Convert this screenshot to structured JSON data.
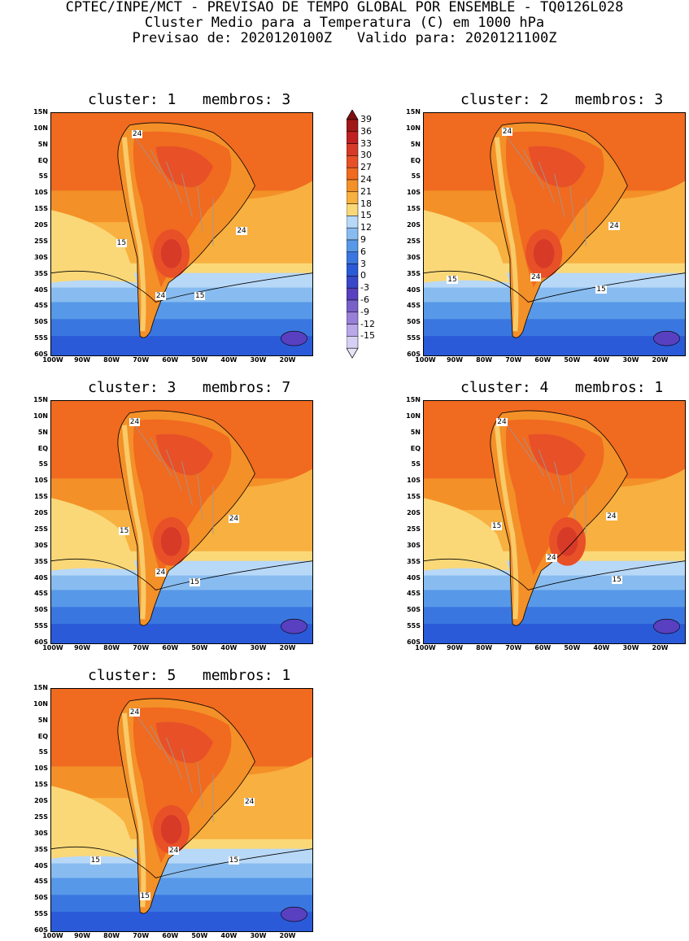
{
  "header": {
    "line1": "CPTEC/INPE/MCT - PREVISAO DE TEMPO GLOBAL POR ENSEMBLE - TQ0126L028",
    "line2": "Cluster Medio para a Temperatura (C) em 1000 hPa",
    "line3": "Previsao de: 2020120100Z   Valido para: 2020121100Z"
  },
  "axes": {
    "lat_labels": [
      "15N",
      "10N",
      "5N",
      "EQ",
      "5S",
      "10S",
      "15S",
      "20S",
      "25S",
      "30S",
      "35S",
      "40S",
      "45S",
      "50S",
      "55S",
      "60S"
    ],
    "lon_labels": [
      "100W",
      "90W",
      "80W",
      "70W",
      "60W",
      "50W",
      "40W",
      "30W",
      "20W"
    ]
  },
  "colorbar": {
    "labels": [
      "39",
      "36",
      "33",
      "30",
      "27",
      "24",
      "21",
      "18",
      "15",
      "12",
      "9",
      "6",
      "3",
      "0",
      "-3",
      "-6",
      "-9",
      "-12",
      "-15"
    ],
    "colors": [
      "#a01818",
      "#c02020",
      "#d83a28",
      "#e85028",
      "#f06a20",
      "#f49028",
      "#f8b040",
      "#fad878",
      "#b8d8f8",
      "#88bcf0",
      "#5898e8",
      "#3a76e0",
      "#2a5ad8",
      "#3848c8",
      "#5840c0",
      "#7860c8",
      "#9880d8",
      "#b8a8e8",
      "#d8d0f4"
    ],
    "top_color": "#801010",
    "bottom_color": "#e8e4f8"
  },
  "panels": [
    {
      "title": "cluster: 1   membros: 3",
      "labels": [
        "24",
        "24",
        "15",
        "24",
        "15"
      ]
    },
    {
      "title": "cluster: 2   membros: 3",
      "labels": [
        "24",
        "24",
        "15",
        "24",
        "15"
      ]
    },
    {
      "title": "cluster: 3   membros: 7",
      "labels": [
        "24",
        "24",
        "15",
        "24",
        "15"
      ]
    },
    {
      "title": "cluster: 4   membros: 1",
      "labels": [
        "24",
        "24",
        "15",
        "24",
        "15"
      ]
    },
    {
      "title": "cluster: 5   membros: 1",
      "labels": [
        "24",
        "24",
        "15",
        "24",
        "15",
        "15"
      ]
    }
  ]
}
